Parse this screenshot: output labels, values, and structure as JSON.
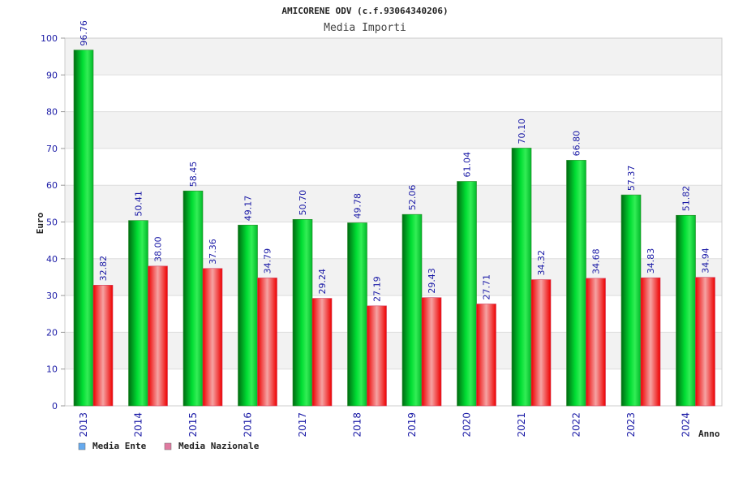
{
  "chart_data": {
    "type": "bar",
    "title": "AMICORENE ODV (c.f.93064340206)",
    "subtitle": "Media Importi",
    "xlabel": "Anno",
    "ylabel": "Euro",
    "ylim": [
      0,
      100
    ],
    "yticks": [
      0,
      10,
      20,
      30,
      40,
      50,
      60,
      70,
      80,
      90,
      100
    ],
    "grid": true,
    "legend_position": "bottom-left",
    "categories": [
      "2013",
      "2014",
      "2015",
      "2016",
      "2017",
      "2018",
      "2019",
      "2020",
      "2021",
      "2022",
      "2023",
      "2024"
    ],
    "series": [
      {
        "name": "Media Ente",
        "color": "#00cc33",
        "legend_color": "#66aaee",
        "values": [
          96.76,
          50.41,
          58.45,
          49.17,
          50.7,
          49.78,
          52.06,
          61.04,
          70.1,
          66.8,
          57.37,
          51.82
        ],
        "labels": [
          "96.76",
          "50.41",
          "58.45",
          "49.17",
          "50.70",
          "49.78",
          "52.06",
          "61.04",
          "70.10",
          "66.80",
          "57.37",
          "51.82"
        ]
      },
      {
        "name": "Media Nazionale",
        "color": "#ff1a1a",
        "legend_color": "#e07aa0",
        "values": [
          32.82,
          38.0,
          37.36,
          34.79,
          29.24,
          27.19,
          29.43,
          27.71,
          34.32,
          34.68,
          34.83,
          34.94
        ],
        "labels": [
          "32.82",
          "38.00",
          "37.36",
          "34.79",
          "29.24",
          "27.19",
          "29.43",
          "27.71",
          "34.32",
          "34.68",
          "34.83",
          "34.94"
        ]
      }
    ]
  }
}
